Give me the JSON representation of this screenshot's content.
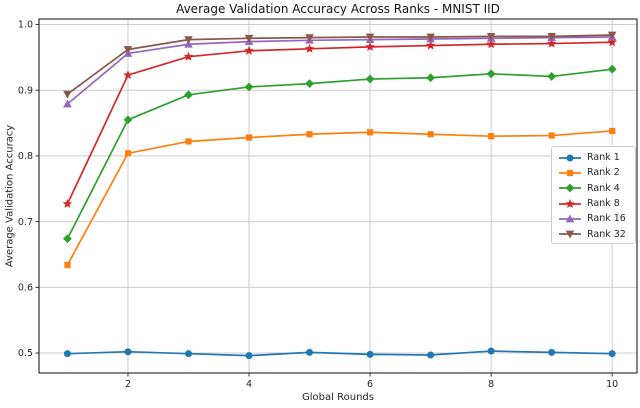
{
  "chart_data": {
    "type": "line",
    "title": "Average Validation Accuracy Across Ranks - MNIST IID",
    "xlabel": "Global Rounds",
    "ylabel": "Average Validation Accuracy",
    "x": [
      1,
      2,
      3,
      4,
      5,
      6,
      7,
      8,
      9,
      10
    ],
    "x_ticks": [
      2,
      4,
      6,
      8,
      10
    ],
    "y_ticks": [
      0.5,
      0.6,
      0.7,
      0.8,
      0.9,
      1.0
    ],
    "xlim": [
      0.53,
      10.41
    ],
    "ylim": [
      0.4696,
      1.0084
    ],
    "grid": true,
    "grid_color": "#cccccc",
    "spine_color": "#333333",
    "legend_position": "center-right",
    "series": [
      {
        "name": "Rank 1",
        "color": "#1f77b4",
        "marker": "circle",
        "values": [
          0.499,
          0.502,
          0.499,
          0.496,
          0.501,
          0.498,
          0.497,
          0.503,
          0.501,
          0.499
        ]
      },
      {
        "name": "Rank 2",
        "color": "#ff7f0e",
        "marker": "square",
        "values": [
          0.634,
          0.804,
          0.822,
          0.828,
          0.833,
          0.836,
          0.833,
          0.83,
          0.831,
          0.838
        ]
      },
      {
        "name": "Rank 4",
        "color": "#2ca02c",
        "marker": "diamond",
        "values": [
          0.674,
          0.855,
          0.893,
          0.905,
          0.91,
          0.917,
          0.919,
          0.925,
          0.921,
          0.932
        ]
      },
      {
        "name": "Rank 8",
        "color": "#d62728",
        "marker": "star",
        "values": [
          0.727,
          0.923,
          0.951,
          0.96,
          0.963,
          0.966,
          0.968,
          0.97,
          0.971,
          0.973
        ]
      },
      {
        "name": "Rank 16",
        "color": "#9467bd",
        "marker": "triangle-up",
        "values": [
          0.879,
          0.956,
          0.97,
          0.974,
          0.976,
          0.977,
          0.978,
          0.979,
          0.98,
          0.981
        ]
      },
      {
        "name": "Rank 32",
        "color": "#8c564b",
        "marker": "triangle-down",
        "values": [
          0.894,
          0.962,
          0.977,
          0.979,
          0.98,
          0.981,
          0.981,
          0.982,
          0.982,
          0.984
        ]
      }
    ]
  }
}
